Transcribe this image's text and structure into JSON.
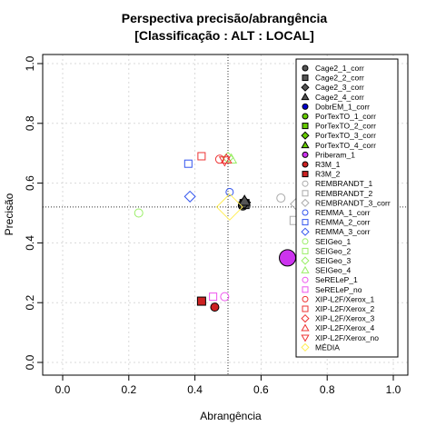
{
  "chart_data": {
    "type": "scatter",
    "title": "Perspectiva precisão/abrangência",
    "subtitle": "[Classificação : ALT : LOCAL]",
    "xlabel": "Abrangência",
    "ylabel": "Precisão",
    "xlim": [
      0,
      1
    ],
    "ylim": [
      0,
      1
    ],
    "xticks": [
      "0.0",
      "0.2",
      "0.4",
      "0.6",
      "0.8",
      "1.0"
    ],
    "yticks": [
      "0.0",
      "0.2",
      "0.4",
      "0.6",
      "0.8",
      "1.0"
    ],
    "grid": true,
    "legend_position": "right",
    "reference_lines": {
      "x": 0.5,
      "y": 0.52
    },
    "series": [
      {
        "name": "Cage2_1_corr",
        "shape": "circle",
        "filled": true,
        "color": "#555555",
        "x": 0.545,
        "y": 0.525,
        "size": 5
      },
      {
        "name": "Cage2_2_corr",
        "shape": "square",
        "filled": true,
        "color": "#555555",
        "x": 0.55,
        "y": 0.53,
        "size": 5
      },
      {
        "name": "Cage2_3_corr",
        "shape": "diamond",
        "filled": true,
        "color": "#555555",
        "x": 0.55,
        "y": 0.535,
        "size": 5
      },
      {
        "name": "Cage2_4_corr",
        "shape": "triangle",
        "filled": true,
        "color": "#555555",
        "x": 0.55,
        "y": 0.54,
        "size": 5
      },
      {
        "name": "DobrEM_1_corr",
        "shape": "circle",
        "filled": true,
        "color": "#0000cc",
        "x": null,
        "y": null,
        "size": 4
      },
      {
        "name": "PorTexTO_1_corr",
        "shape": "circle",
        "filled": true,
        "color": "#66cc00",
        "x": null,
        "y": null,
        "size": 4
      },
      {
        "name": "PorTexTO_2_corr",
        "shape": "square",
        "filled": true,
        "color": "#66cc00",
        "x": null,
        "y": null,
        "size": 4
      },
      {
        "name": "PorTexTO_3_corr",
        "shape": "diamond",
        "filled": true,
        "color": "#66cc00",
        "x": null,
        "y": null,
        "size": 4
      },
      {
        "name": "PorTexTO_4_corr",
        "shape": "triangle",
        "filled": true,
        "color": "#66cc00",
        "x": null,
        "y": null,
        "size": 4
      },
      {
        "name": "Priberam_1",
        "shape": "circle",
        "filled": true,
        "color": "#cc33ee",
        "x": 0.68,
        "y": 0.35,
        "size": 9
      },
      {
        "name": "R3M_1",
        "shape": "circle",
        "filled": true,
        "color": "#cc2222",
        "x": 0.46,
        "y": 0.185,
        "size": 4.5
      },
      {
        "name": "R3M_2",
        "shape": "square",
        "filled": true,
        "color": "#cc2222",
        "x": 0.42,
        "y": 0.205,
        "size": 4.5
      },
      {
        "name": "REMBRANDT_1",
        "shape": "circle",
        "filled": false,
        "color": "#aaaaaa",
        "x": 0.66,
        "y": 0.55,
        "size": 4.5
      },
      {
        "name": "REMBRANDT_2",
        "shape": "square",
        "filled": false,
        "color": "#aaaaaa",
        "x": 0.7,
        "y": 0.475,
        "size": 4.5
      },
      {
        "name": "REMBRANDT_3_corr",
        "shape": "diamond",
        "filled": false,
        "color": "#aaaaaa",
        "x": 0.705,
        "y": 0.53,
        "size": 4.5
      },
      {
        "name": "REMMA_1_corr",
        "shape": "circle",
        "filled": false,
        "color": "#3355ee",
        "x": 0.505,
        "y": 0.57,
        "size": 4
      },
      {
        "name": "REMMA_2_corr",
        "shape": "square",
        "filled": false,
        "color": "#3355ee",
        "x": 0.38,
        "y": 0.665,
        "size": 4
      },
      {
        "name": "REMMA_3_corr",
        "shape": "diamond",
        "filled": false,
        "color": "#3355ee",
        "x": 0.385,
        "y": 0.555,
        "size": 4.5
      },
      {
        "name": "SEIGeo_1",
        "shape": "circle",
        "filled": false,
        "color": "#99ee66",
        "x": 0.23,
        "y": 0.5,
        "size": 4.5
      },
      {
        "name": "SEIGeo_2",
        "shape": "square",
        "filled": false,
        "color": "#99ee66",
        "x": null,
        "y": null,
        "size": 4
      },
      {
        "name": "SEIGeo_3",
        "shape": "diamond",
        "filled": false,
        "color": "#99ee66",
        "x": 0.5,
        "y": 0.685,
        "size": 4.5
      },
      {
        "name": "SEIGeo_4",
        "shape": "triangle",
        "filled": false,
        "color": "#99ee66",
        "x": 0.51,
        "y": 0.68,
        "size": 4.5
      },
      {
        "name": "SeRELeP_1",
        "shape": "circle",
        "filled": false,
        "color": "#ee55ee",
        "x": 0.49,
        "y": 0.22,
        "size": 4.5
      },
      {
        "name": "SeRELeP_no",
        "shape": "square",
        "filled": false,
        "color": "#ee55ee",
        "x": 0.455,
        "y": 0.22,
        "size": 4
      },
      {
        "name": "XIP-L2F/Xerox_1",
        "shape": "circle",
        "filled": false,
        "color": "#ee3333",
        "x": 0.475,
        "y": 0.68,
        "size": 4.5
      },
      {
        "name": "XIP-L2F/Xerox_2",
        "shape": "square",
        "filled": false,
        "color": "#ee3333",
        "x": 0.42,
        "y": 0.69,
        "size": 4
      },
      {
        "name": "XIP-L2F/Xerox_3",
        "shape": "diamond",
        "filled": false,
        "color": "#ee3333",
        "x": null,
        "y": null,
        "size": 4
      },
      {
        "name": "XIP-L2F/Xerox_4",
        "shape": "triangle",
        "filled": false,
        "color": "#ee3333",
        "x": 0.495,
        "y": 0.68,
        "size": 4.5
      },
      {
        "name": "XIP-L2F/Xerox_no",
        "shape": "triangle-down",
        "filled": false,
        "color": "#ee3333",
        "x": 0.49,
        "y": 0.675,
        "size": 4.5
      },
      {
        "name": "MÉDIA",
        "shape": "diamond",
        "filled": false,
        "color": "#ffee55",
        "x": 0.505,
        "y": 0.52,
        "size": 11
      }
    ]
  }
}
